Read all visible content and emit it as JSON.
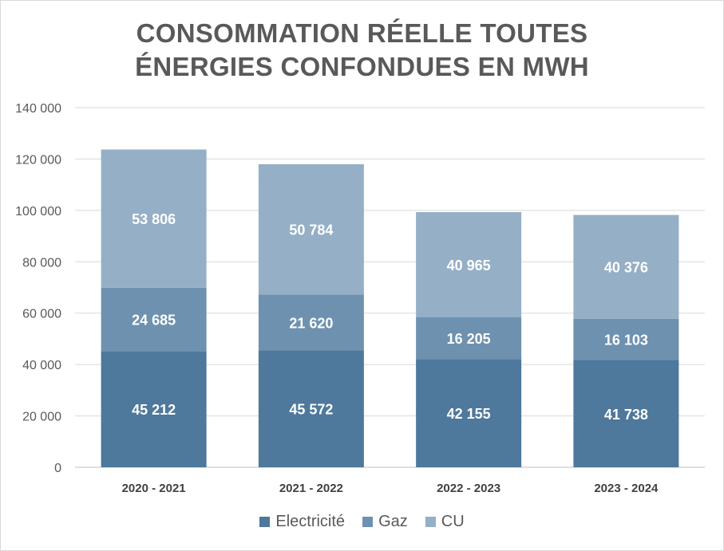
{
  "chart_data": {
    "type": "bar",
    "stacked": true,
    "title": "CONSOMMATION RÉELLE TOUTES ÉNERGIES CONFONDUES EN MWH",
    "title_lines": [
      "CONSOMMATION RÉELLE TOUTES",
      "ÉNERGIES CONFONDUES EN MWH"
    ],
    "xlabel": "",
    "ylabel": "",
    "categories": [
      "2020 - 2021",
      "2021 - 2022",
      "2022 - 2023",
      "2023 - 2024"
    ],
    "ylim": [
      0,
      140000
    ],
    "yticks": [
      0,
      20000,
      40000,
      60000,
      80000,
      100000,
      120000,
      140000
    ],
    "ytick_labels": [
      "0",
      "20 000",
      "40 000",
      "60 000",
      "80 000",
      "100 000",
      "120 000",
      "140 000"
    ],
    "grid": true,
    "legend_position": "bottom",
    "series": [
      {
        "name": "Electricité",
        "color": "#4e789c",
        "values": [
          45212,
          45572,
          42155,
          41738
        ],
        "labels": [
          "45 212",
          "45 572",
          "42 155",
          "41 738"
        ]
      },
      {
        "name": "Gaz",
        "color": "#6e91b0",
        "values": [
          24685,
          21620,
          16205,
          16103
        ],
        "labels": [
          "24 685",
          "21 620",
          "16 205",
          "16 103"
        ]
      },
      {
        "name": "CU",
        "color": "#95afc6",
        "values": [
          53806,
          50784,
          40965,
          40376
        ],
        "labels": [
          "53 806",
          "50 784",
          "40 965",
          "40 376"
        ]
      }
    ]
  }
}
